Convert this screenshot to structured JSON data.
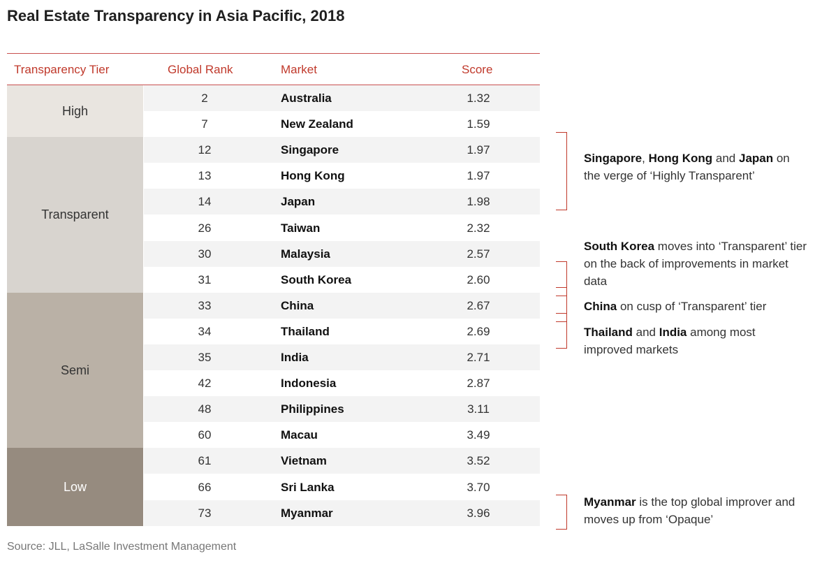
{
  "title": "Real Estate Transparency in Asia Pacific, 2018",
  "source": "Source: JLL, LaSalle Investment Management",
  "colors": {
    "accent": "#c0392b",
    "tier_high": "#e9e5e0",
    "tier_transparent": "#d8d4cf",
    "tier_semi": "#bab1a6",
    "tier_low": "#968b7f",
    "row_shade": "#f3f3f3"
  },
  "chart_data": {
    "type": "table",
    "title": "Real Estate Transparency in Asia Pacific, 2018",
    "columns": [
      "Transparency Tier",
      "Global Rank",
      "Market",
      "Score"
    ],
    "tiers": [
      {
        "name": "High",
        "rows": 2
      },
      {
        "name": "Transparent",
        "rows": 6
      },
      {
        "name": "Semi",
        "rows": 6
      },
      {
        "name": "Low",
        "rows": 3
      }
    ],
    "rows": [
      {
        "rank": "2",
        "market": "Australia",
        "score": "1.32"
      },
      {
        "rank": "7",
        "market": "New Zealand",
        "score": "1.59"
      },
      {
        "rank": "12",
        "market": "Singapore",
        "score": "1.97"
      },
      {
        "rank": "13",
        "market": "Hong Kong",
        "score": "1.97"
      },
      {
        "rank": "14",
        "market": "Japan",
        "score": "1.98"
      },
      {
        "rank": "26",
        "market": "Taiwan",
        "score": "2.32"
      },
      {
        "rank": "30",
        "market": "Malaysia",
        "score": "2.57"
      },
      {
        "rank": "31",
        "market": "South Korea",
        "score": "2.60"
      },
      {
        "rank": "33",
        "market": "China",
        "score": "2.67"
      },
      {
        "rank": "34",
        "market": "Thailand",
        "score": "2.69"
      },
      {
        "rank": "35",
        "market": "India",
        "score": "2.71"
      },
      {
        "rank": "42",
        "market": "Indonesia",
        "score": "2.87"
      },
      {
        "rank": "48",
        "market": "Philippines",
        "score": "3.11"
      },
      {
        "rank": "60",
        "market": "Macau",
        "score": "3.49"
      },
      {
        "rank": "61",
        "market": "Vietnam",
        "score": "3.52"
      },
      {
        "rank": "66",
        "market": "Sri Lanka",
        "score": "3.70"
      },
      {
        "rank": "73",
        "market": "Myanmar",
        "score": "3.96"
      }
    ],
    "annotations": [
      {
        "from_market": "Singapore",
        "to_market": "Japan",
        "parts": [
          {
            "text": "Singapore",
            "bold": true
          },
          {
            "text": ", ",
            "bold": false
          },
          {
            "text": "Hong Kong",
            "bold": true
          },
          {
            "text": " and ",
            "bold": false
          },
          {
            "text": "Japan",
            "bold": true
          },
          {
            "text": " on the verge of ‘Highly Transparent’",
            "bold": false
          }
        ]
      },
      {
        "from_market": "South Korea",
        "to_market": "South Korea",
        "parts": [
          {
            "text": "South Korea",
            "bold": true
          },
          {
            "text": " moves into ‘Transparent’ tier on the back of improvements in market data",
            "bold": false
          }
        ]
      },
      {
        "from_market": "China",
        "to_market": "China",
        "parts": [
          {
            "text": "China",
            "bold": true
          },
          {
            "text": " on cusp of ‘Transparent’ tier",
            "bold": false
          }
        ]
      },
      {
        "from_market": "Thailand",
        "to_market": "Thailand",
        "parts": [
          {
            "text": "Thailand",
            "bold": true
          },
          {
            "text": " and ",
            "bold": false
          },
          {
            "text": "India",
            "bold": true
          },
          {
            "text": " among most improved markets",
            "bold": false
          }
        ]
      },
      {
        "from_market": "Myanmar",
        "to_market": "Myanmar",
        "parts": [
          {
            "text": "Myanmar",
            "bold": true
          },
          {
            "text": " is the top global improver and moves up from ‘Opaque’",
            "bold": false
          }
        ]
      }
    ]
  }
}
